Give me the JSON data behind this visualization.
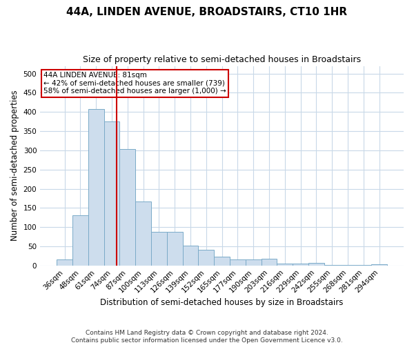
{
  "title1": "44A, LINDEN AVENUE, BROADSTAIRS, CT10 1HR",
  "title2": "Size of property relative to semi-detached houses in Broadstairs",
  "xlabel": "Distribution of semi-detached houses by size in Broadstairs",
  "ylabel": "Number of semi-detached properties",
  "footer1": "Contains HM Land Registry data © Crown copyright and database right 2024.",
  "footer2": "Contains public sector information licensed under the Open Government Licence v3.0.",
  "annotation_line1": "44A LINDEN AVENUE: 81sqm",
  "annotation_line2": "← 42% of semi-detached houses are smaller (739)",
  "annotation_line3": "58% of semi-detached houses are larger (1,000) →",
  "bar_color": "#cddded",
  "bar_edge_color": "#7aaac8",
  "vline_color": "#cc0000",
  "annotation_box_color": "#cc0000",
  "bg_color": "#ffffff",
  "grid_color": "#c8d8e8",
  "categories": [
    "36sqm",
    "48sqm",
    "61sqm",
    "74sqm",
    "87sqm",
    "100sqm",
    "113sqm",
    "126sqm",
    "139sqm",
    "152sqm",
    "165sqm",
    "177sqm",
    "190sqm",
    "203sqm",
    "216sqm",
    "229sqm",
    "242sqm",
    "255sqm",
    "268sqm",
    "281sqm",
    "294sqm"
  ],
  "values": [
    15,
    130,
    408,
    375,
    303,
    167,
    87,
    87,
    52,
    40,
    22,
    15,
    15,
    18,
    5,
    5,
    7,
    2,
    2,
    2,
    3
  ],
  "ylim": [
    0,
    520
  ],
  "yticks": [
    0,
    50,
    100,
    150,
    200,
    250,
    300,
    350,
    400,
    450,
    500
  ],
  "vline_position": 3.3,
  "title1_fontsize": 11,
  "title2_fontsize": 9,
  "tick_fontsize": 7.5,
  "label_fontsize": 8.5,
  "footer_fontsize": 6.5,
  "annot_fontsize": 7.5
}
